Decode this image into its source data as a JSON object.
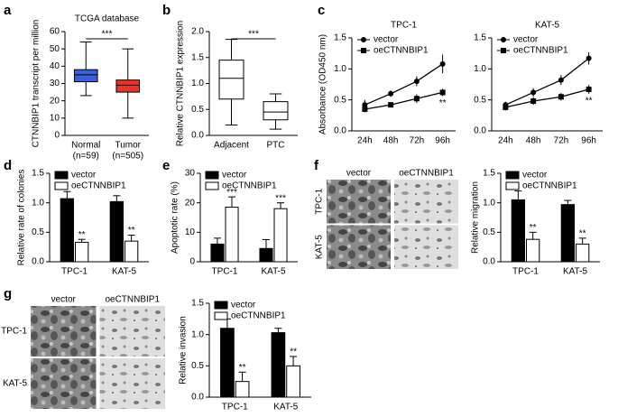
{
  "chart_data": [
    {
      "type": "box",
      "panel": "a",
      "title": "TCGA database",
      "ylabel": "CTNNBIP1 transcript per million",
      "categories": [
        "Normal",
        "Tumor"
      ],
      "sublabels": [
        "(n=59)",
        "(n=505)"
      ],
      "colors": [
        "#3a5fd9",
        "#e8342a"
      ],
      "boxes": [
        {
          "min": 23,
          "q1": 31,
          "median": 35,
          "q3": 38,
          "max": 54
        },
        {
          "min": 10,
          "q1": 25,
          "median": 29,
          "q3": 32,
          "max": 50
        }
      ],
      "sig": "***",
      "ylim": [
        0,
        60
      ],
      "yticks": [
        0,
        10,
        20,
        30,
        40,
        50,
        60
      ]
    },
    {
      "type": "box",
      "panel": "b",
      "ylabel": "Relative CTNNBIP1 expression",
      "categories": [
        "Adjacent",
        "PTC"
      ],
      "colors": [
        "#ffffff",
        "#ffffff"
      ],
      "boxes": [
        {
          "min": 0.2,
          "q1": 0.7,
          "median": 1.1,
          "q3": 1.45,
          "max": 1.85
        },
        {
          "min": 0.12,
          "q1": 0.3,
          "median": 0.45,
          "q3": 0.65,
          "max": 0.8
        }
      ],
      "sig": "***",
      "ylim": [
        0,
        2
      ],
      "yticks": [
        {
          "value": 0,
          "label": "0.0"
        },
        0.5,
        {
          "value": 1,
          "label": "1.0"
        },
        1.5,
        {
          "value": 2,
          "label": "2.0"
        }
      ]
    },
    {
      "type": "line",
      "panel": "c",
      "title": "TPC-1",
      "ylabel": "Absorbance (OD450 nm)",
      "legend": "upper left",
      "categories": [
        "24h",
        "48h",
        "72h",
        "96h"
      ],
      "series": [
        {
          "name": "vector",
          "color": "#000000",
          "marker": "circle",
          "values": [
            0.42,
            0.6,
            0.8,
            1.08
          ],
          "errors": [
            0.08,
            0.05,
            0.08,
            0.15
          ]
        },
        {
          "name": "oeCTNNBIP1",
          "color": "#000000",
          "marker": "square",
          "values": [
            0.35,
            0.42,
            0.52,
            0.62
          ],
          "errors": [
            0.05,
            0.04,
            0.07,
            0.06
          ]
        }
      ],
      "sig": "**",
      "ylim": [
        0,
        1.5
      ],
      "yticks": [
        {
          "value": 0,
          "label": "0.0"
        },
        0.5,
        {
          "value": 1,
          "label": "1.0"
        },
        1.5
      ]
    },
    {
      "type": "line",
      "title": "KAT-5",
      "legend": "upper left",
      "categories": [
        "24h",
        "48h",
        "72h",
        "96h"
      ],
      "series": [
        {
          "name": "vector",
          "color": "#000000",
          "marker": "circle",
          "values": [
            0.42,
            0.62,
            0.82,
            1.17
          ],
          "errors": [
            0.05,
            0.07,
            0.08,
            0.1
          ]
        },
        {
          "name": "oeCTNNBIP1",
          "color": "#000000",
          "marker": "square",
          "values": [
            0.38,
            0.48,
            0.55,
            0.67
          ],
          "errors": [
            0.05,
            0.06,
            0.06,
            0.07
          ]
        }
      ],
      "sig": "**",
      "ylim": [
        0,
        1.5
      ],
      "yticks": [
        {
          "value": 0,
          "label": "0.0"
        },
        0.5,
        {
          "value": 1,
          "label": "1.0"
        },
        1.5
      ]
    },
    {
      "type": "bar",
      "panel": "d",
      "ylabel": "Relative rate of colonies",
      "legend": "upper left",
      "categories": [
        "TPC-1",
        "KAT-5"
      ],
      "series": [
        {
          "name": "vector",
          "color": "#000000",
          "values": [
            1.07,
            1.02
          ],
          "errors": [
            0.12,
            0.1
          ]
        },
        {
          "name": "oeCTNNBIP1",
          "color": "#ffffff",
          "values": [
            0.33,
            0.35
          ],
          "errors": [
            0.05,
            0.1
          ]
        }
      ],
      "sig": [
        "**",
        "**"
      ],
      "ylim": [
        0,
        1.5
      ],
      "yticks": [
        {
          "value": 0,
          "label": "0.0"
        },
        0.5,
        {
          "value": 1,
          "label": "1.0"
        },
        1.5
      ]
    },
    {
      "type": "bar",
      "panel": "e",
      "ylabel": "Apoptotic rate (%)",
      "legend": "upper left",
      "categories": [
        "TPC-1",
        "KAT-5"
      ],
      "series": [
        {
          "name": "vector",
          "color": "#000000",
          "values": [
            6,
            4.5
          ],
          "errors": [
            2,
            3
          ]
        },
        {
          "name": "oeCTNNBIP1",
          "color": "#ffffff",
          "values": [
            18.5,
            18
          ],
          "errors": [
            3.5,
            2
          ]
        }
      ],
      "sig": [
        "***",
        "***"
      ],
      "ylim": [
        0,
        30
      ],
      "yticks": [
        0,
        10,
        20,
        30
      ]
    },
    {
      "type": "bar",
      "panel": "f",
      "ylabel": "Relative migration",
      "legend": "upper left",
      "images": {
        "columns": [
          "vector",
          "oeCTNNBIP1"
        ],
        "rows": [
          "TPC-1",
          "KAT-5"
        ]
      },
      "categories": [
        "TPC-1",
        "KAT-5"
      ],
      "series": [
        {
          "name": "vector",
          "color": "#000000",
          "values": [
            1.05,
            0.97
          ],
          "errors": [
            0.15,
            0.07
          ]
        },
        {
          "name": "oeCTNNBIP1",
          "color": "#ffffff",
          "values": [
            0.38,
            0.3
          ],
          "errors": [
            0.12,
            0.1
          ]
        }
      ],
      "sig": [
        "**",
        "**"
      ],
      "ylim": [
        0,
        1.5
      ],
      "yticks": [
        {
          "value": 0,
          "label": "0.0"
        },
        0.5,
        {
          "value": 1,
          "label": "1.0"
        },
        1.5
      ]
    },
    {
      "type": "bar",
      "panel": "g",
      "ylabel": "Relative invasion",
      "legend": "upper left",
      "images": {
        "columns": [
          "vector",
          "oeCTNNBIP1"
        ],
        "rows": [
          "TPC-1",
          "KAT-5"
        ]
      },
      "categories": [
        "TPC-1",
        "KAT-5"
      ],
      "series": [
        {
          "name": "vector",
          "color": "#000000",
          "values": [
            1.1,
            1.03
          ],
          "errors": [
            0.15,
            0.07
          ]
        },
        {
          "name": "oeCTNNBIP1",
          "color": "#ffffff",
          "values": [
            0.25,
            0.5
          ],
          "errors": [
            0.15,
            0.15
          ]
        }
      ],
      "sig": [
        "**",
        "**"
      ],
      "ylim": [
        0,
        1.5
      ],
      "yticks": [
        {
          "value": 0,
          "label": "0.0"
        },
        0.5,
        {
          "value": 1,
          "label": "1.0"
        },
        1.5
      ]
    }
  ]
}
